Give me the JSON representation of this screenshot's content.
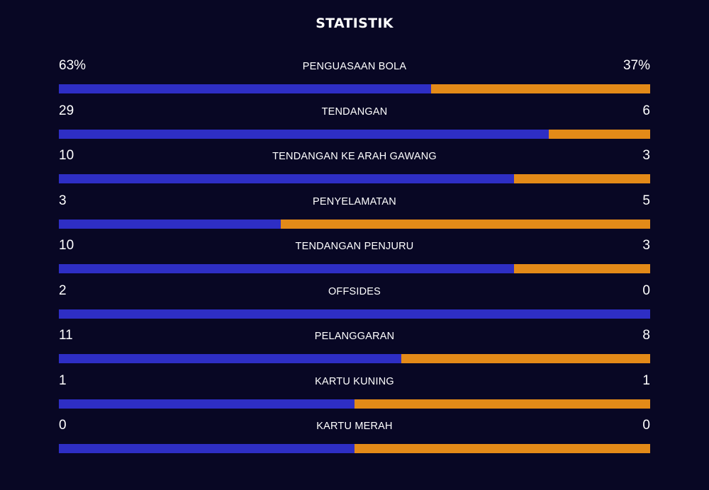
{
  "title": "STATISTIK",
  "colors": {
    "background": "#080724",
    "home": "#2e2ec4",
    "away": "#e38a18"
  },
  "stats": [
    {
      "label": "PENGUASAAN BOLA",
      "home": "63%",
      "away": "37%",
      "home_value": 63,
      "away_value": 37
    },
    {
      "label": "TENDANGAN",
      "home": "29",
      "away": "6",
      "home_value": 29,
      "away_value": 6
    },
    {
      "label": "TENDANGAN KE ARAH GAWANG",
      "home": "10",
      "away": "3",
      "home_value": 10,
      "away_value": 3
    },
    {
      "label": "PENYELAMATAN",
      "home": "3",
      "away": "5",
      "home_value": 3,
      "away_value": 5
    },
    {
      "label": "TENDANGAN PENJURU",
      "home": "10",
      "away": "3",
      "home_value": 10,
      "away_value": 3
    },
    {
      "label": "OFFSIDES",
      "home": "2",
      "away": "0",
      "home_value": 2,
      "away_value": 0
    },
    {
      "label": "PELANGGARAN",
      "home": "11",
      "away": "8",
      "home_value": 11,
      "away_value": 8
    },
    {
      "label": "KARTU KUNING",
      "home": "1",
      "away": "1",
      "home_value": 1,
      "away_value": 1
    },
    {
      "label": "KARTU MERAH",
      "home": "0",
      "away": "0",
      "home_value": 0,
      "away_value": 0
    }
  ]
}
